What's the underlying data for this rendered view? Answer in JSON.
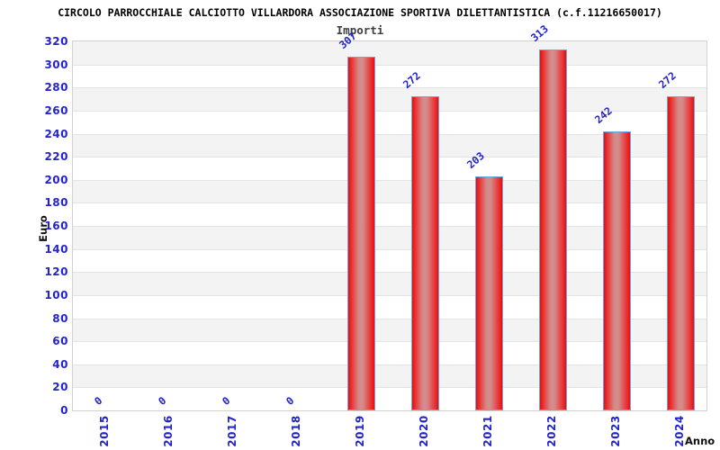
{
  "page": {
    "background": "#ffffff"
  },
  "chart_data": {
    "type": "bar",
    "title": "CIRCOLO PARROCCHIALE CALCIOTTO VILLARDORA ASSOCIAZIONE SPORTIVA DILETTANTISTICA (c.f.11216650017)",
    "subtitle": "Importi",
    "xlabel": "Anno",
    "ylabel": "Euro",
    "categories": [
      "2015",
      "2016",
      "2017",
      "2018",
      "2019",
      "2020",
      "2021",
      "2022",
      "2023",
      "2024"
    ],
    "values": [
      0,
      0,
      0,
      0,
      307,
      272,
      203,
      313,
      242,
      272
    ],
    "ylim": [
      0,
      320
    ],
    "ytick_step": 20,
    "legend_position": "none",
    "grid": "alternating-horizontal-bands",
    "colors": {
      "axis_label_blue": "#2323cc",
      "value_label_blue": "#2323cc",
      "bar_red": "#e80d0e",
      "bar_center_highlight": "#cf9090",
      "bar_border_blue": "#6ba7e4",
      "band_gray": "#f3f3f3",
      "band_white": "#ffffff",
      "gridline": "#e4e4e4",
      "plot_border": "#d2d2d2",
      "title_color": "#000000",
      "subtitle_color": "#3d3d3d"
    }
  }
}
